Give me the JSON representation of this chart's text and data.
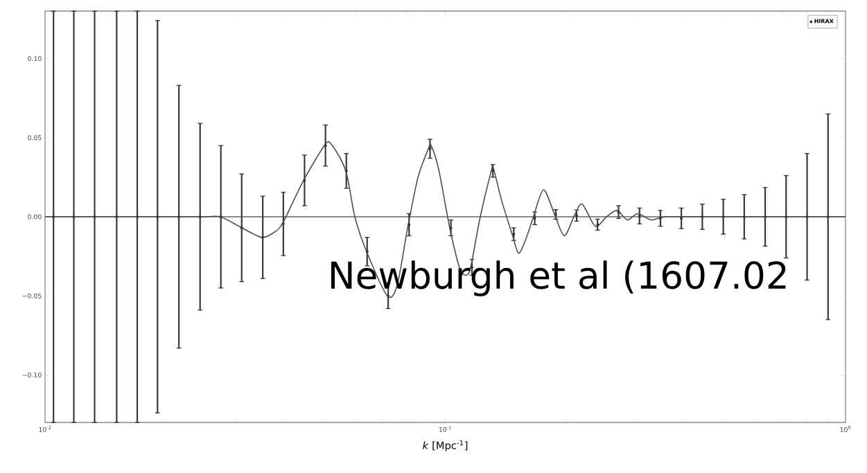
{
  "chart_data": {
    "type": "scatter",
    "xlabel": "*k* [Mpc$^{-1}$]",
    "log": "x",
    "xlim": [
      0.01,
      1
    ],
    "ylim": [
      -0.13,
      0.13
    ],
    "xticks": [
      {
        "value": 0.01,
        "label": "10$^{-2}$"
      },
      {
        "value": 0.1,
        "label": "10$^{-1}$"
      },
      {
        "value": 1,
        "label": "10$^{0}$"
      }
    ],
    "yticks": [
      {
        "value": -0.1,
        "label": "−0.10"
      },
      {
        "value": -0.05,
        "label": "−0.05"
      },
      {
        "value": 0,
        "label": "0.00"
      },
      {
        "value": 0.05,
        "label": "0.05"
      },
      {
        "value": 0.1,
        "label": "0.10"
      }
    ],
    "grid": false,
    "legend": "top right",
    "marker": "circle",
    "ref_lines": [
      {
        "axis": "y",
        "value": 0,
        "color": "#8c8c8c"
      }
    ],
    "annotations": [
      "Newburgh et al (1607.02"
    ],
    "series": [
      {
        "name": "HIRAX",
        "color": "#333333",
        "x": [
          0.0105,
          0.0118,
          0.0133,
          0.0151,
          0.017,
          0.0191,
          0.0216,
          0.0244,
          0.0275,
          0.031,
          0.035,
          0.0394,
          0.0445,
          0.0502,
          0.0566,
          0.0638,
          0.072,
          0.0812,
          0.0916,
          0.1033,
          0.1166,
          0.1315,
          0.1483,
          0.1673,
          0.1888,
          0.2129,
          0.2402,
          0.271,
          0.3057,
          0.3448,
          0.389,
          0.4388,
          0.495,
          0.5584,
          0.6299,
          0.7106,
          0.8016,
          0.9043
        ],
        "values": [
          0,
          0,
          0,
          0,
          0,
          0,
          0,
          0,
          0,
          -0.007,
          -0.013,
          -0.0045,
          0.023,
          0.045,
          0.029,
          -0.022,
          -0.05,
          -0.005,
          0.043,
          -0.007,
          -0.032,
          0.029,
          -0.011,
          -0.001,
          0.0015,
          0.0007,
          -0.005,
          0.003,
          0.0005,
          -0.001,
          -0.001,
          0,
          0,
          0,
          0,
          0,
          0,
          0
        ],
        "errors": [
          0.13,
          0.13,
          0.13,
          0.13,
          0.13,
          0.124,
          0.083,
          0.059,
          0.045,
          0.034,
          0.026,
          0.02,
          0.016,
          0.013,
          0.011,
          0.009,
          0.008,
          0.007,
          0.006,
          0.005,
          0.005,
          0.004,
          0.004,
          0.004,
          0.003,
          0.0035,
          0.0035,
          0.004,
          0.005,
          0.005,
          0.0065,
          0.008,
          0.011,
          0.014,
          0.0185,
          0.026,
          0.04,
          0.065
        ]
      },
      {
        "type": "line",
        "marker": "none",
        "color": "#4d4d4d",
        "x": [
          0.01,
          0.015,
          0.02,
          0.025,
          0.02741,
          0.03054,
          0.03469,
          0.03727,
          0.03926,
          0.04426,
          0.04989,
          0.05188,
          0.05642,
          0.05943,
          0.06359,
          0.07167,
          0.07586,
          0.08079,
          0.08551,
          0.09071,
          0.09216,
          0.09627,
          0.1026,
          0.1085,
          0.1125,
          0.1157,
          0.1223,
          0.1303,
          0.1318,
          0.1384,
          0.1469,
          0.1524,
          0.1585,
          0.1656,
          0.1758,
          0.1866,
          0.1982,
          0.2104,
          0.2198,
          0.2371,
          0.2529,
          0.2685,
          0.2851,
          0.3027,
          0.3273,
          0.3548,
          0.45,
          0.6,
          0.8,
          1
        ],
        "values": [
          0,
          0,
          0,
          0,
          0,
          -0.006,
          -0.013,
          -0.01,
          -0.004,
          0.023,
          0.045,
          0.046,
          0.029,
          0,
          -0.022,
          -0.05,
          -0.043,
          -0.005,
          0.025,
          0.043,
          0.045,
          0.03,
          -0.007,
          -0.032,
          -0.037,
          -0.032,
          0,
          0.029,
          0.031,
          0.01,
          -0.011,
          -0.023,
          -0.015,
          -0.001,
          0.017,
          0.003,
          -0.012,
          0.001,
          0.008,
          -0.006,
          0,
          0.004,
          -0.002,
          0.002,
          -0.002,
          0,
          0,
          0,
          0,
          0
        ]
      }
    ]
  }
}
